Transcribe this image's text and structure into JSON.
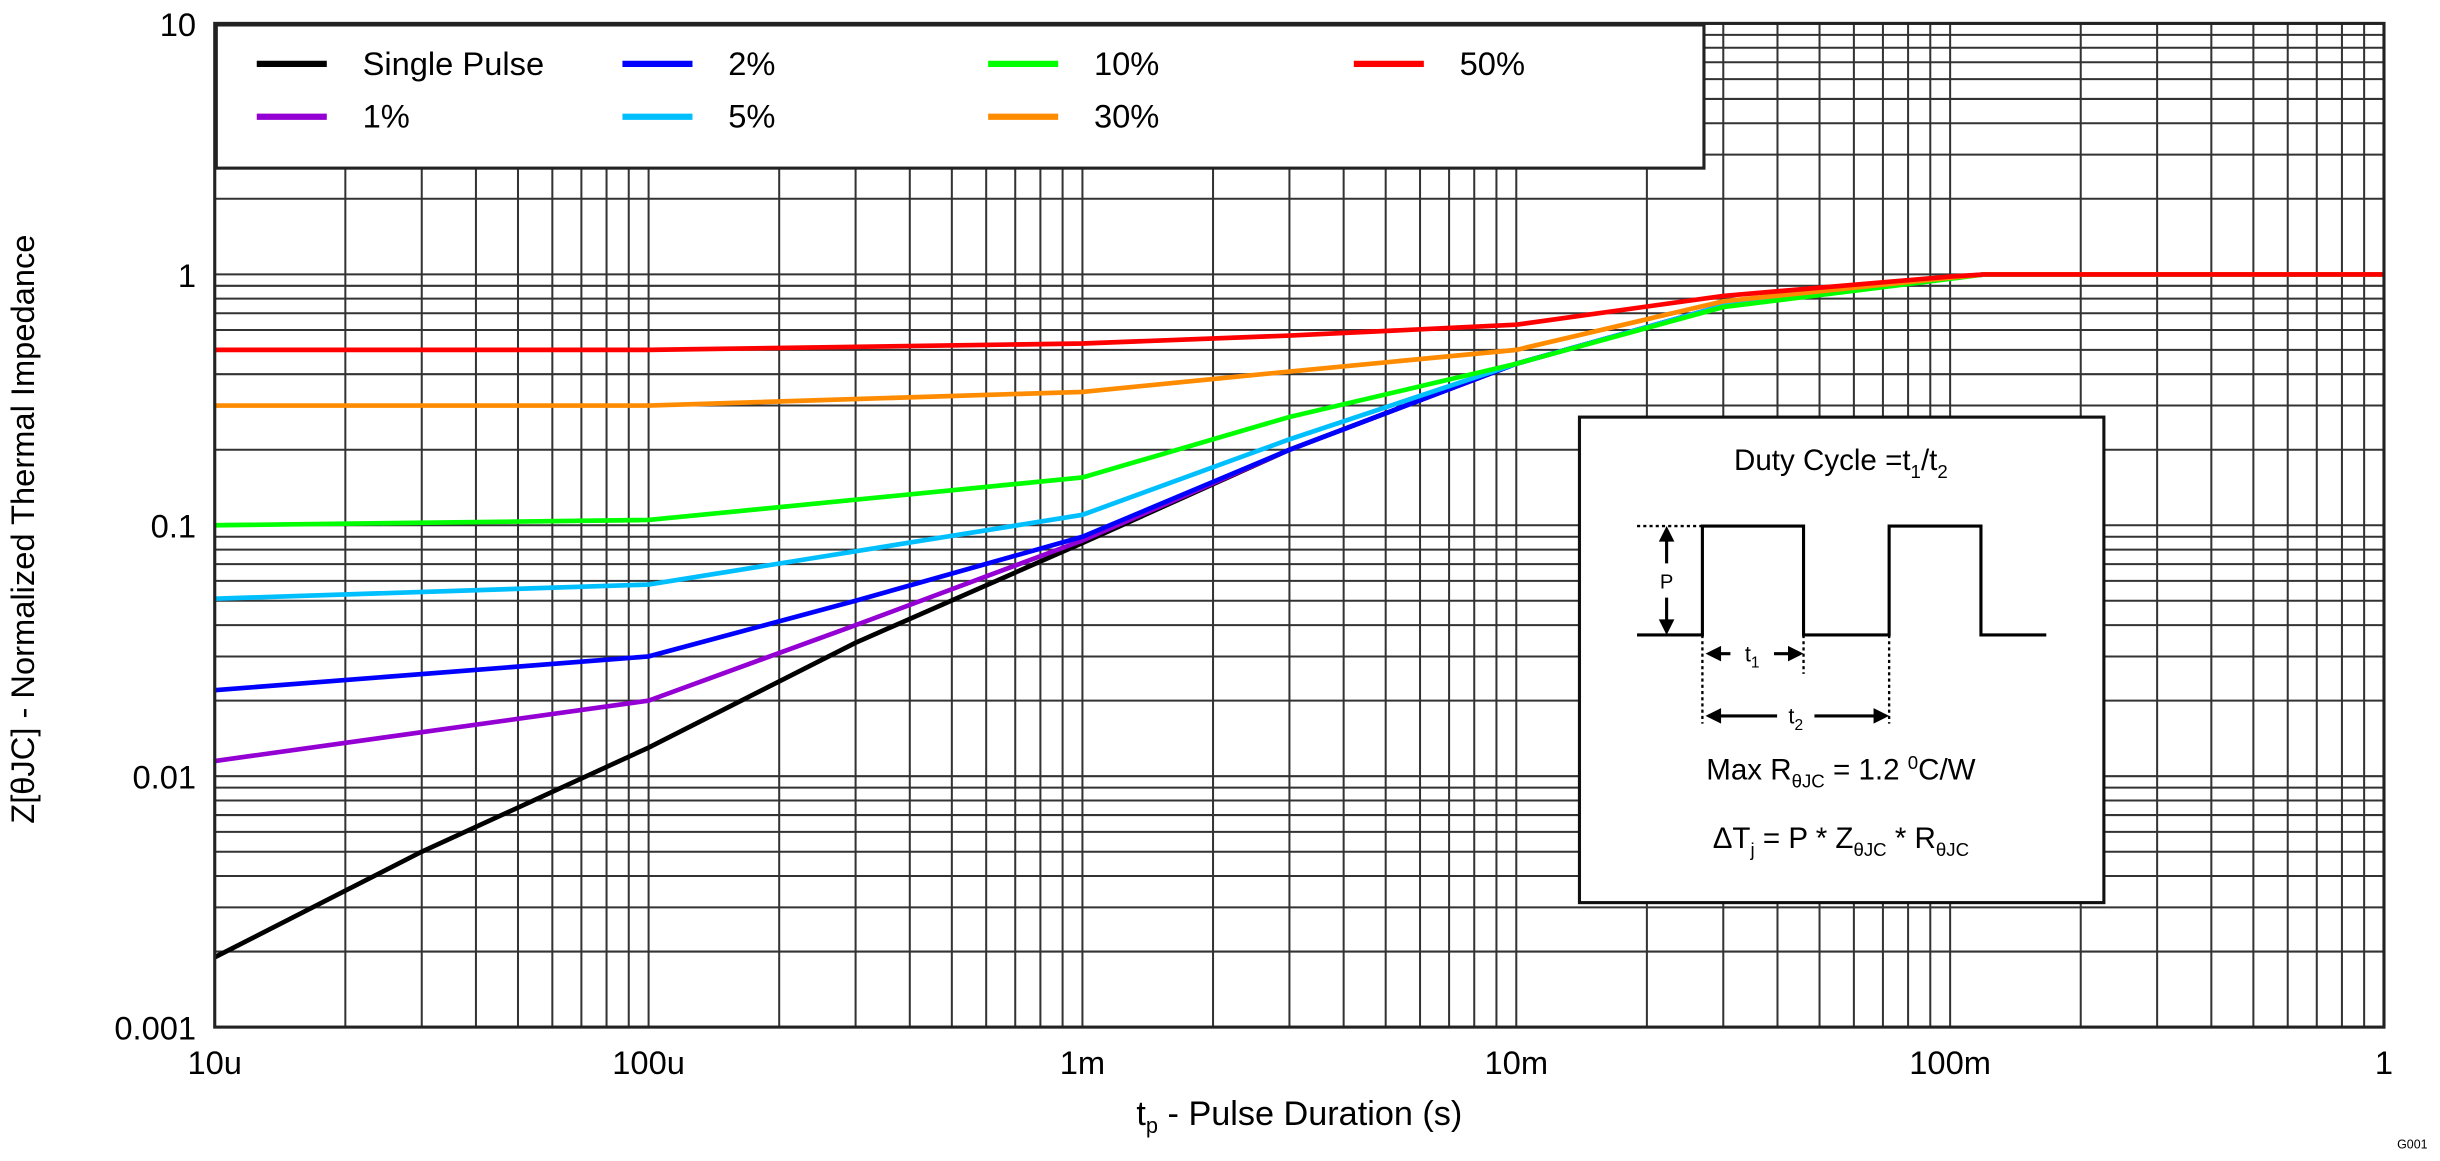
{
  "chart_data": {
    "type": "line",
    "xscale": "log",
    "yscale": "log",
    "xlim": [
      1e-05,
      1
    ],
    "ylim": [
      0.001,
      10
    ],
    "grid": true,
    "xlabel": "t",
    "xlabel_sub": "p",
    "xlabel_rest": " - Pulse Duration (s)",
    "ylabel": "Z[θJC] - Normalized Thermal Impedance",
    "x_ticks": [
      {
        "value": 1e-05,
        "label": "10u"
      },
      {
        "value": 0.0001,
        "label": "100u"
      },
      {
        "value": 0.001,
        "label": "1m"
      },
      {
        "value": 0.01,
        "label": "10m"
      },
      {
        "value": 0.1,
        "label": "100m"
      },
      {
        "value": 1,
        "label": "1"
      }
    ],
    "y_ticks": [
      {
        "value": 10,
        "label": "10"
      },
      {
        "value": 1,
        "label": "1"
      },
      {
        "value": 0.1,
        "label": "0.1"
      },
      {
        "value": 0.01,
        "label": "0.01"
      },
      {
        "value": 0.001,
        "label": "0.001"
      }
    ],
    "legend_position": "top-left",
    "series": [
      {
        "name": "Single Pulse",
        "color": "#000000",
        "x": [
          1e-05,
          3e-05,
          0.0001,
          0.0003,
          0.001,
          0.003,
          0.01,
          0.03,
          0.1,
          0.12,
          1
        ],
        "y": [
          0.0019,
          0.005,
          0.013,
          0.034,
          0.085,
          0.2,
          0.44,
          0.75,
          0.97,
          1.0,
          1.0
        ]
      },
      {
        "name": "1%",
        "color": "#9400d3",
        "x": [
          1e-05,
          0.0001,
          0.0003,
          0.001,
          0.003,
          0.01,
          0.03,
          0.1,
          0.12,
          1
        ],
        "y": [
          0.0115,
          0.02,
          0.04,
          0.087,
          0.2,
          0.44,
          0.75,
          0.97,
          1.0,
          1.0
        ]
      },
      {
        "name": "2%",
        "color": "#0000ff",
        "x": [
          1e-05,
          0.0001,
          0.0003,
          0.001,
          0.003,
          0.01,
          0.03,
          0.1,
          0.12,
          1
        ],
        "y": [
          0.022,
          0.03,
          0.05,
          0.09,
          0.2,
          0.44,
          0.75,
          0.97,
          1.0,
          1.0
        ]
      },
      {
        "name": "5%",
        "color": "#00bfff",
        "x": [
          1e-05,
          0.0001,
          0.001,
          0.003,
          0.01,
          0.03,
          0.1,
          0.12,
          1
        ],
        "y": [
          0.051,
          0.058,
          0.11,
          0.22,
          0.44,
          0.75,
          0.97,
          1.0,
          1.0
        ]
      },
      {
        "name": "10%",
        "color": "#00ff00",
        "x": [
          1e-05,
          0.0001,
          0.001,
          0.003,
          0.01,
          0.03,
          0.1,
          0.12,
          1
        ],
        "y": [
          0.1,
          0.105,
          0.155,
          0.27,
          0.44,
          0.74,
          0.96,
          1.0,
          1.0
        ]
      },
      {
        "name": "30%",
        "color": "#ff8c00",
        "x": [
          1e-05,
          0.0001,
          0.001,
          0.003,
          0.01,
          0.03,
          0.1,
          0.12,
          1
        ],
        "y": [
          0.3,
          0.3,
          0.34,
          0.41,
          0.5,
          0.78,
          0.97,
          1.0,
          1.0
        ]
      },
      {
        "name": "50%",
        "color": "#ff0000",
        "x": [
          1e-05,
          0.0001,
          0.001,
          0.003,
          0.01,
          0.03,
          0.1,
          0.12,
          1
        ],
        "y": [
          0.5,
          0.5,
          0.53,
          0.57,
          0.63,
          0.82,
          0.98,
          1.0,
          1.0
        ]
      }
    ],
    "inset": {
      "title": "Duty Cycle =t",
      "title_sub1": "1",
      "title_mid": "/t",
      "title_sub2": "2",
      "p_label": "P",
      "t1_label": "t",
      "t1_sub": "1",
      "t2_label": "t",
      "t2_sub": "2",
      "rmax_prefix": "Max R",
      "rmax_sub": "θJC",
      "rmax_value": " = 1.2 ",
      "rmax_sup": "0",
      "rmax_unit": "C/W",
      "dt_prefix": "ΔT",
      "dt_sub": "j",
      "dt_mid": " = P * Z",
      "dt_sub2": "θJC",
      "dt_mid2": " * R",
      "dt_sub3": "θJC"
    },
    "figure_id": "G001"
  }
}
